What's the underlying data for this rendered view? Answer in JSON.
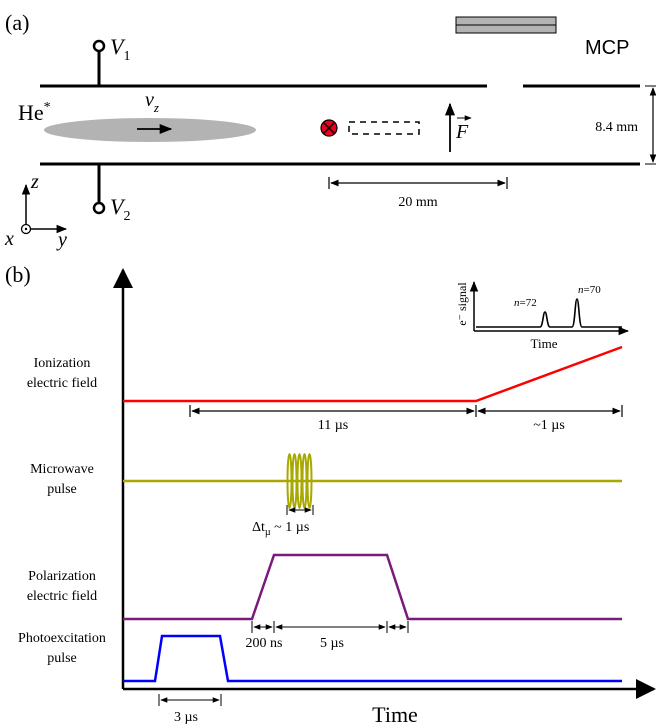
{
  "panel_a": {
    "label": "(a)",
    "detector_label": "MCP",
    "v1": {
      "symbol": "V",
      "sub": "1"
    },
    "v2": {
      "symbol": "V",
      "sub": "2"
    },
    "beam": {
      "symbol": "He",
      "sup": "*"
    },
    "velocity": {
      "symbol": "v",
      "sub": "z"
    },
    "field": {
      "symbol": "F"
    },
    "plate_gap": "8.4 mm",
    "distance": "20 mm",
    "axes": {
      "z": "z",
      "x": "x",
      "y": "y"
    },
    "colors": {
      "beam": "#b3b3b3",
      "marker": "#e8001c",
      "detector": "#b3b3b3"
    }
  },
  "panel_b": {
    "label": "(b)",
    "time_label": "Time",
    "traces": [
      {
        "label_lines": [
          "Ionization",
          "electric field"
        ],
        "color": "#ff0000"
      },
      {
        "label_lines": [
          "Microwave",
          "pulse"
        ],
        "color": "#a8a800"
      },
      {
        "label_lines": [
          "Polarization",
          "electric field"
        ],
        "color": "#7a1a7a"
      },
      {
        "label_lines": [
          "Photoexcitation",
          "pulse"
        ],
        "color": "#0000ff"
      }
    ],
    "durations": {
      "ionization_delay": "11 µs",
      "ramp": "~1 µs",
      "microwave": {
        "prefix": "Δt",
        "sub": "µ",
        "suffix": " ~ 1 µs"
      },
      "rise": "200 ns",
      "polarization": "5 µs",
      "photoexcitation": "3 µs"
    },
    "inset": {
      "ylabel": "e⁻ signal",
      "xlabel": "Time",
      "peaks": [
        {
          "n_symbol": "n",
          "value": "=72"
        },
        {
          "n_symbol": "n",
          "value": "=70"
        }
      ]
    }
  }
}
